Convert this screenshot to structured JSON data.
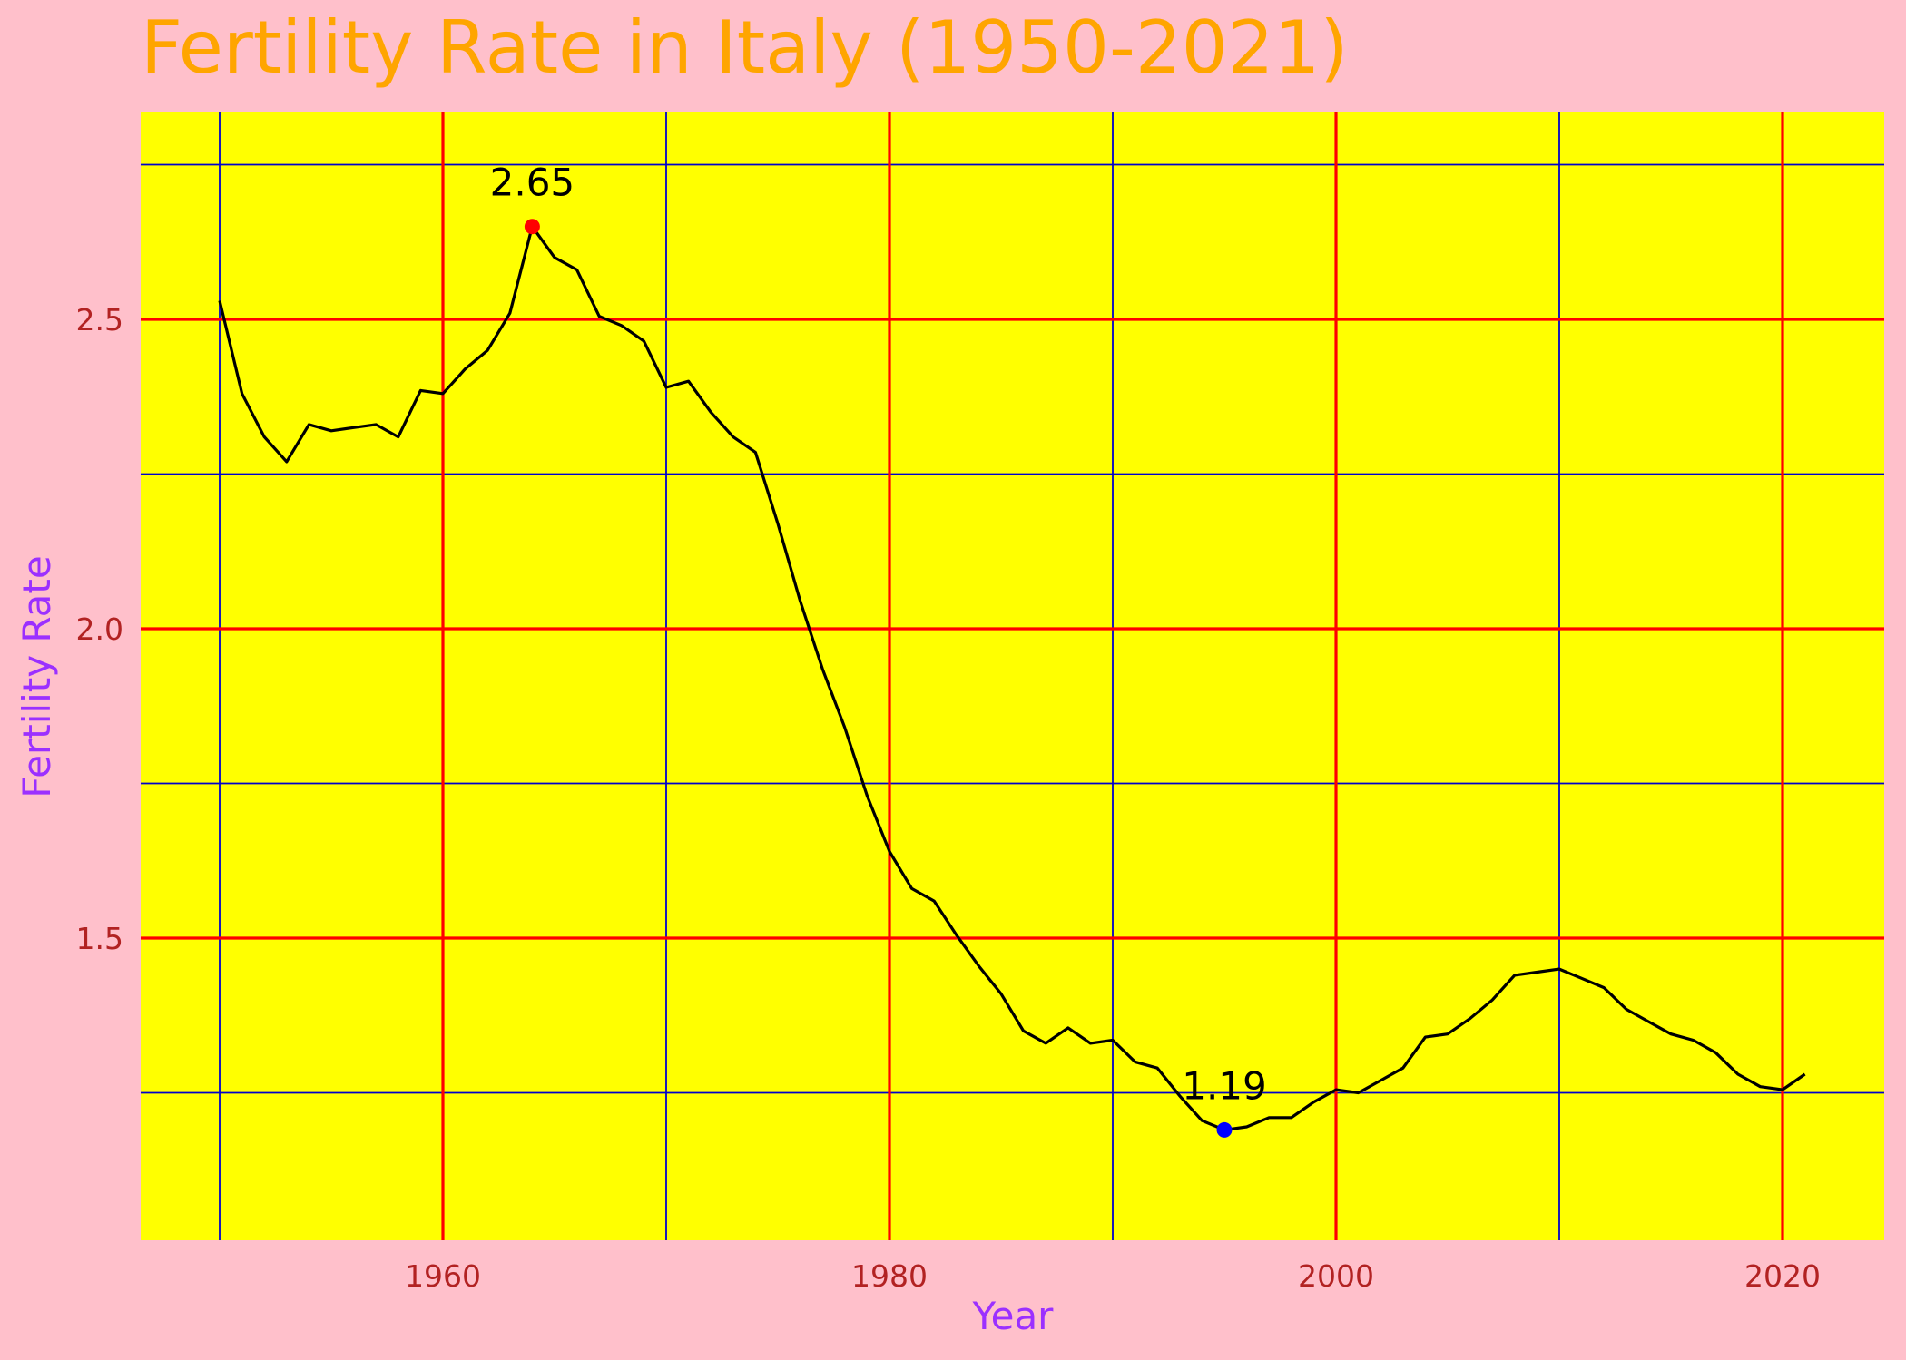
{
  "chart_data": {
    "type": "line",
    "title": "Fertility Rate in Italy (1950-2021)",
    "xlabel": "Year",
    "ylabel": "Fertility Rate",
    "xlim": [
      1946.4,
      1824.4
    ],
    "ylim": [
      0.995,
      2.825
    ],
    "x_ticks": [
      1960,
      1980,
      2000,
      2020
    ],
    "x_tick_labels": [
      "1960",
      "1980",
      "2000",
      "2020"
    ],
    "x_minor_ticks": [
      1950,
      1970,
      1990,
      2010
    ],
    "y_ticks": [
      1.5,
      2.0,
      2.5
    ],
    "y_tick_labels": [
      "1.5",
      "2.0",
      "2.5"
    ],
    "y_minor_ticks": [
      1.25,
      1.75,
      2.25,
      2.75
    ],
    "grid": true,
    "series": [
      {
        "x": [
          1950,
          1951,
          1952,
          1953,
          1954,
          1955,
          1956,
          1957,
          1958,
          1959,
          1960,
          1961,
          1962,
          1963,
          1964,
          1965,
          1966,
          1967,
          1968,
          1969,
          1970,
          1971,
          1972,
          1973,
          1974,
          1975,
          1976,
          1977,
          1978,
          1979,
          1980,
          1981,
          1982,
          1983,
          1984,
          1985,
          1986,
          1987,
          1988,
          1989,
          1990,
          1991,
          1992,
          1993,
          1994,
          1995,
          1996,
          1997,
          1998,
          1999,
          2000,
          2001,
          2002,
          2003,
          2004,
          2005,
          2006,
          2007,
          2008,
          2009,
          2010,
          2011,
          2012,
          2013,
          2014,
          2015,
          2016,
          2017,
          2018,
          2019,
          2020,
          2021
        ],
        "values": [
          2.53,
          2.38,
          2.31,
          2.27,
          2.33,
          2.32,
          2.325,
          2.33,
          2.31,
          2.385,
          2.38,
          2.42,
          2.45,
          2.51,
          2.65,
          2.6,
          2.58,
          2.505,
          2.49,
          2.465,
          2.39,
          2.4,
          2.35,
          2.31,
          2.285,
          2.17,
          2.045,
          1.935,
          1.84,
          1.73,
          1.64,
          1.58,
          1.56,
          1.505,
          1.455,
          1.41,
          1.35,
          1.33,
          1.355,
          1.33,
          1.335,
          1.3,
          1.29,
          1.245,
          1.205,
          1.19,
          1.195,
          1.21,
          1.21,
          1.235,
          1.255,
          1.25,
          1.27,
          1.29,
          1.34,
          1.345,
          1.37,
          1.4,
          1.44,
          1.445,
          1.45,
          1.435,
          1.42,
          1.385,
          1.365,
          1.345,
          1.335,
          1.315,
          1.28,
          1.26,
          1.255,
          1.28
        ]
      }
    ],
    "annotations": [
      {
        "x": 1964,
        "y": 2.65,
        "text": "2.65",
        "color": "#ff0000"
      },
      {
        "x": 1995,
        "y": 1.19,
        "text": "1.19",
        "color": "#0000ff"
      }
    ],
    "colors": {
      "background": "#ffc0cb",
      "plot_background": "#ffff00",
      "major_grid": "#ff0000",
      "minor_grid": "#0000cc",
      "line": "#000000",
      "title": "#ffa500",
      "axis_label": "#9b30ff",
      "tick_label": "#b22222"
    }
  }
}
